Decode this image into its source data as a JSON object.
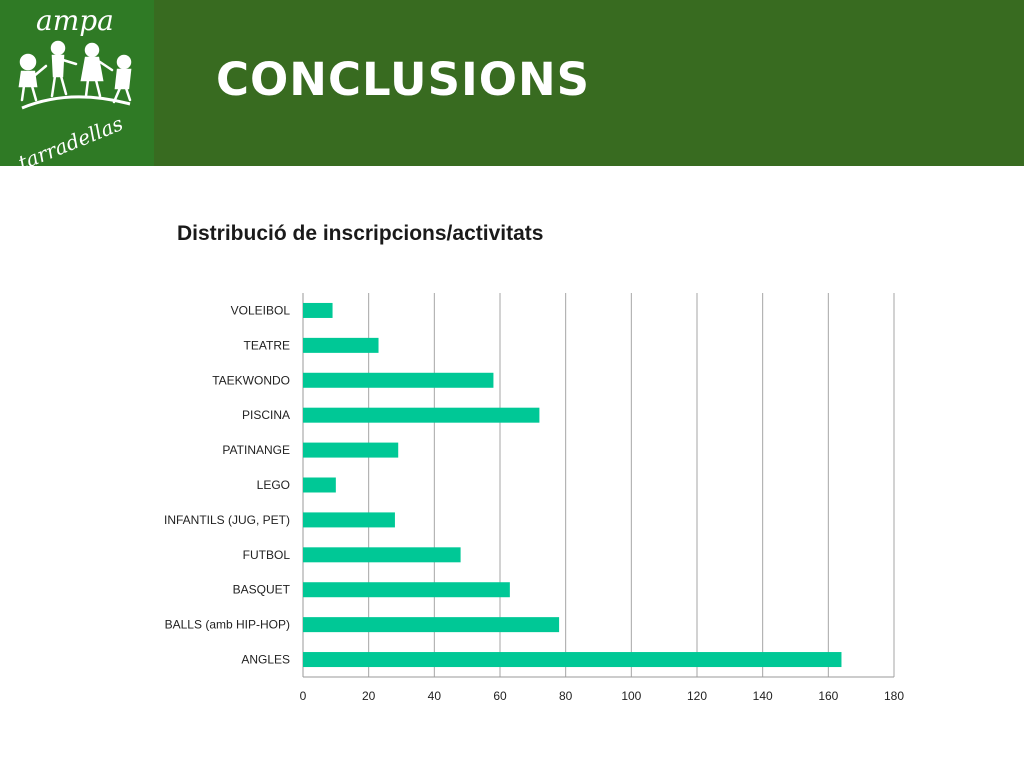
{
  "header": {
    "logo_text_top": "ampa",
    "logo_text_bottom": "tarradellas",
    "title": "CONCLUSIONS",
    "background_color": "#386b20",
    "logo_background_color": "#2f7a25"
  },
  "chart_data": {
    "type": "bar",
    "orientation": "horizontal",
    "title": "Distribució de inscripcions/activitats",
    "categories": [
      "VOLEIBOL",
      "TEATRE",
      "TAEKWONDO",
      "PISCINA",
      "PATINANGE",
      "LEGO",
      "INFANTILS (JUG, PET)",
      "FUTBOL",
      "BASQUET",
      "BALLS (amb HIP-HOP)",
      "ANGLES"
    ],
    "values": [
      9,
      23,
      58,
      72,
      29,
      10,
      28,
      48,
      63,
      78,
      164
    ],
    "xlim": [
      0,
      180
    ],
    "xticks": [
      0,
      20,
      40,
      60,
      80,
      100,
      120,
      140,
      160,
      180
    ],
    "grid": true,
    "bar_color": "#00c896",
    "xlabel": "",
    "ylabel": ""
  }
}
